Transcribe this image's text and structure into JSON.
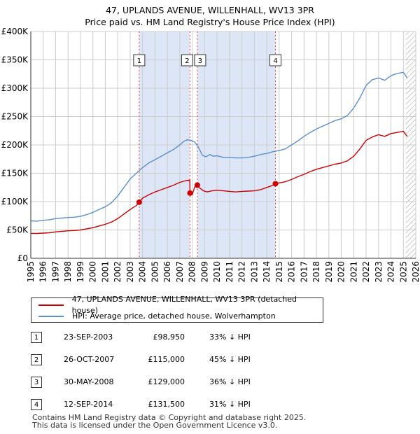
{
  "title_line1": "47, UPLANDS AVENUE, WILLENHALL, WV13 3PR",
  "title_line2": "Price paid vs. HM Land Registry's House Price Index (HPI)",
  "colors": {
    "price_paid": "#cc0000",
    "hpi": "#5b8fcc",
    "shade": "#dde6f7",
    "grid": "#cccccc"
  },
  "legend": {
    "price_paid_label": "47, UPLANDS AVENUE, WILLENHALL, WV13 3PR (detached house)",
    "hpi_label": "HPI: Average price, detached house, Wolverhampton"
  },
  "transactions": [
    {
      "num": "1",
      "date": "23-SEP-2003",
      "price": "£98,950",
      "hpi": "33% ↓ HPI"
    },
    {
      "num": "2",
      "date": "26-OCT-2007",
      "price": "£115,000",
      "hpi": "45% ↓ HPI"
    },
    {
      "num": "3",
      "date": "30-MAY-2008",
      "price": "£129,000",
      "hpi": "36% ↓ HPI"
    },
    {
      "num": "4",
      "date": "12-SEP-2014",
      "price": "£131,500",
      "hpi": "31% ↓ HPI"
    }
  ],
  "footer_line1": "Contains HM Land Registry data © Copyright and database right 2025.",
  "footer_line2": "This data is licensed under the Open Government Licence v3.0.",
  "chart_data": {
    "type": "line",
    "title": "47, UPLANDS AVENUE, WILLENHALL, WV13 3PR",
    "subtitle": "Price paid vs. HM Land Registry's House Price Index (HPI)",
    "xlim": [
      1995,
      2026
    ],
    "ylim": [
      0,
      400000
    ],
    "x_ticks": [
      1995,
      1996,
      1997,
      1998,
      1999,
      2000,
      2001,
      2002,
      2003,
      2004,
      2005,
      2006,
      2007,
      2008,
      2009,
      2010,
      2011,
      2012,
      2013,
      2014,
      2015,
      2016,
      2017,
      2018,
      2019,
      2020,
      2021,
      2022,
      2023,
      2024,
      2025,
      2026
    ],
    "y_ticks": [
      {
        "value": 0,
        "label": "£0"
      },
      {
        "value": 50000,
        "label": "£50K"
      },
      {
        "value": 100000,
        "label": "£100K"
      },
      {
        "value": 150000,
        "label": "£150K"
      },
      {
        "value": 200000,
        "label": "£200K"
      },
      {
        "value": 250000,
        "label": "£250K"
      },
      {
        "value": 300000,
        "label": "£300K"
      },
      {
        "value": 350000,
        "label": "£350K"
      },
      {
        "value": 400000,
        "label": "£400K"
      }
    ],
    "shaded_ranges": [
      [
        2003.73,
        2007.82
      ],
      [
        2008.41,
        2014.7
      ]
    ],
    "hatch_from": 2025.2,
    "markers": [
      {
        "label": "1",
        "x": 2003.73,
        "y": 98950
      },
      {
        "label": "2",
        "x": 2007.82,
        "y": 115000
      },
      {
        "label": "3",
        "x": 2008.41,
        "y": 129000
      },
      {
        "label": "4",
        "x": 2014.7,
        "y": 131500
      }
    ],
    "series": [
      {
        "name": "HPI: Average price, detached house, Wolverhampton",
        "x": [
          1995,
          1995.5,
          1996,
          1996.5,
          1997,
          1997.5,
          1998,
          1998.5,
          1999,
          1999.5,
          2000,
          2000.5,
          2001,
          2001.5,
          2002,
          2002.5,
          2003,
          2003.5,
          2004,
          2004.5,
          2005,
          2005.5,
          2006,
          2006.5,
          2007,
          2007.3,
          2007.6,
          2007.9,
          2008.2,
          2008.5,
          2008.8,
          2009.1,
          2009.4,
          2009.7,
          2010,
          2010.5,
          2011,
          2011.5,
          2012,
          2012.5,
          2013,
          2013.5,
          2014,
          2014.5,
          2015,
          2015.5,
          2016,
          2016.5,
          2017,
          2017.5,
          2018,
          2018.5,
          2019,
          2019.5,
          2020,
          2020.5,
          2021,
          2021.5,
          2022,
          2022.5,
          2023,
          2023.5,
          2024,
          2024.5,
          2025,
          2025.3
        ],
        "values": [
          66000,
          65500,
          67000,
          68000,
          70000,
          71000,
          72000,
          72500,
          74000,
          77000,
          81000,
          86000,
          91000,
          98000,
          110000,
          125000,
          140000,
          150000,
          160000,
          168000,
          174000,
          180000,
          186000,
          192000,
          200000,
          206000,
          209000,
          208000,
          205000,
          196000,
          182000,
          179000,
          183000,
          180000,
          181000,
          178000,
          178000,
          177000,
          177000,
          178000,
          180000,
          183000,
          185000,
          188000,
          190000,
          193000,
          200000,
          207000,
          215000,
          222000,
          228000,
          233000,
          238000,
          243000,
          246000,
          252000,
          265000,
          283000,
          305000,
          315000,
          318000,
          314000,
          322000,
          326000,
          328000,
          318000
        ]
      },
      {
        "name": "47, UPLANDS AVENUE, WILLENHALL, WV13 3PR (detached house)",
        "x": [
          1995,
          1995.5,
          1996,
          1996.5,
          1997,
          1997.5,
          1998,
          1998.5,
          1999,
          1999.5,
          2000,
          2000.5,
          2001,
          2001.5,
          2002,
          2002.5,
          2003,
          2003.5,
          2003.73,
          2004,
          2004.5,
          2005,
          2005.5,
          2006,
          2006.5,
          2007,
          2007.5,
          2007.8,
          2007.82,
          2008.0,
          2008.2,
          2008.41,
          2008.6,
          2008.9,
          2009.2,
          2009.6,
          2010,
          2010.5,
          2011,
          2011.5,
          2012,
          2012.5,
          2013,
          2013.5,
          2014,
          2014.4,
          2014.7,
          2015,
          2015.5,
          2016,
          2016.5,
          2017,
          2017.5,
          2018,
          2018.5,
          2019,
          2019.5,
          2020,
          2020.5,
          2021,
          2021.5,
          2022,
          2022.5,
          2023,
          2023.5,
          2024,
          2024.5,
          2025,
          2025.3
        ],
        "values": [
          44000,
          43800,
          44500,
          45000,
          46500,
          47500,
          48500,
          49000,
          50000,
          52000,
          54000,
          57000,
          60000,
          64000,
          70000,
          78000,
          86000,
          93000,
          98950,
          106000,
          112000,
          117000,
          121000,
          125000,
          129000,
          134000,
          137000,
          138000,
          115000,
          112000,
          126000,
          129000,
          124000,
          119000,
          117000,
          119000,
          120000,
          119000,
          118000,
          117000,
          118000,
          118500,
          119000,
          121000,
          125000,
          128000,
          131500,
          133000,
          135000,
          139000,
          144000,
          148000,
          153000,
          157000,
          160000,
          163000,
          166000,
          168000,
          172000,
          180000,
          193000,
          208000,
          214000,
          218000,
          215000,
          220000,
          222000,
          224000,
          215000
        ]
      }
    ]
  }
}
